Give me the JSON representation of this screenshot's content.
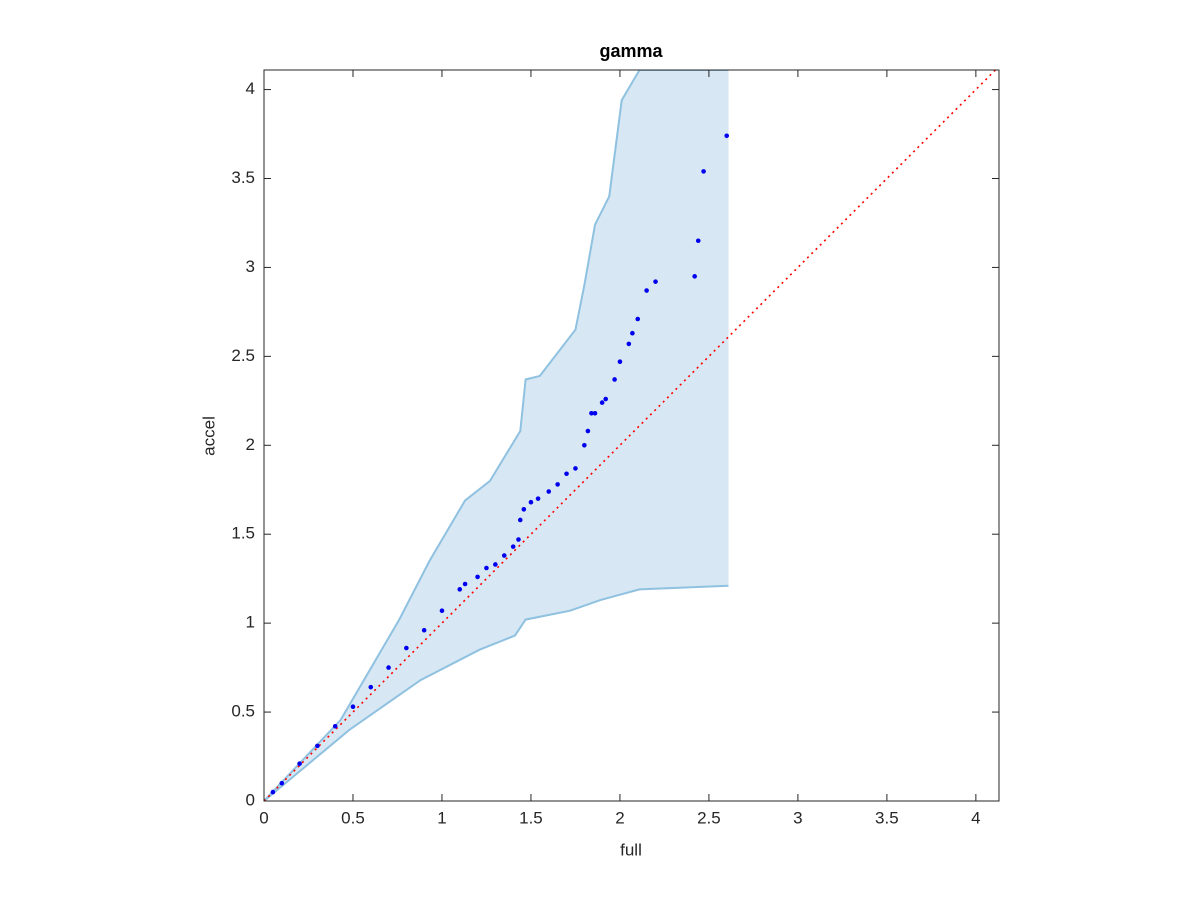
{
  "chart_data": {
    "type": "scatter",
    "title": "gamma",
    "x_label": "full",
    "y_label": "accel",
    "xlim": [
      0,
      4.13
    ],
    "ylim": [
      0,
      4.11
    ],
    "xticks": [
      0,
      0.5,
      1,
      1.5,
      2,
      2.5,
      3,
      3.5,
      4
    ],
    "yticks": [
      0,
      0.5,
      1,
      1.5,
      2,
      2.5,
      3,
      3.5,
      4
    ],
    "band": {
      "fill": "#d7e7f3",
      "color": "#8fc1e0",
      "upper": {
        "x": [
          0,
          0.43,
          0.76,
          0.93,
          1.13,
          1.27,
          1.44,
          1.47,
          1.55,
          1.75,
          1.8,
          1.86,
          1.94,
          2.01,
          2.11,
          2.61
        ],
        "y": [
          0,
          0.455,
          1.02,
          1.35,
          1.69,
          1.8,
          2.08,
          2.37,
          2.39,
          2.65,
          2.9,
          3.24,
          3.4,
          3.94,
          4.11,
          4.11
        ]
      },
      "lower": {
        "x": [
          0,
          0.48,
          0.88,
          1.21,
          1.41,
          1.47,
          1.72,
          1.89,
          2.11,
          2.61
        ],
        "y": [
          0,
          0.4,
          0.68,
          0.85,
          0.93,
          1.02,
          1.07,
          1.13,
          1.19,
          1.21
        ]
      }
    },
    "reference_line": {
      "color": "#ff0000",
      "x": [
        0,
        4.13
      ],
      "y": [
        0,
        4.13
      ]
    },
    "series": [
      {
        "color": "#0000ee",
        "x": [
          0.05,
          0.1,
          0.2,
          0.3,
          0.4,
          0.5,
          0.6,
          0.7,
          0.8,
          0.9,
          1.0,
          1.1,
          1.13,
          1.2,
          1.25,
          1.3,
          1.35,
          1.4,
          1.43,
          1.44,
          1.46,
          1.5,
          1.54,
          1.6,
          1.65,
          1.7,
          1.75,
          1.8,
          1.82,
          1.84,
          1.86,
          1.9,
          1.92,
          1.97,
          2.0,
          2.05,
          2.07,
          2.1,
          2.15,
          2.2,
          2.42,
          2.44,
          2.47,
          2.6
        ],
        "values": [
          0.05,
          0.1,
          0.21,
          0.31,
          0.42,
          0.53,
          0.64,
          0.75,
          0.86,
          0.96,
          1.07,
          1.19,
          1.22,
          1.26,
          1.31,
          1.33,
          1.38,
          1.43,
          1.47,
          1.58,
          1.64,
          1.68,
          1.7,
          1.74,
          1.78,
          1.84,
          1.87,
          2.0,
          2.08,
          2.18,
          2.18,
          2.24,
          2.26,
          2.37,
          2.47,
          2.57,
          2.63,
          2.71,
          2.87,
          2.92,
          2.95,
          3.15,
          3.54,
          3.74
        ]
      }
    ]
  }
}
